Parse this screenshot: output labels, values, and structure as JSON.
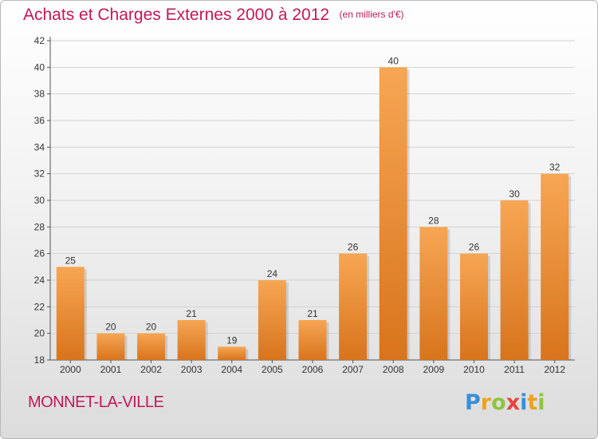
{
  "chart_data": {
    "type": "bar",
    "title": "Achats et Charges Externes 2000 à 2012",
    "subtitle": "(en milliers d'€)",
    "categories": [
      "2000",
      "2001",
      "2002",
      "2003",
      "2004",
      "2005",
      "2006",
      "2007",
      "2008",
      "2009",
      "2010",
      "2011",
      "2012"
    ],
    "values": [
      25,
      20,
      20,
      21,
      19,
      24,
      21,
      26,
      40,
      28,
      26,
      30,
      32
    ],
    "ylim": [
      18,
      42
    ],
    "yticks": [
      18,
      20,
      22,
      24,
      26,
      28,
      30,
      32,
      34,
      36,
      38,
      40,
      42
    ],
    "grid": true,
    "bar_color_top": "#f7a654",
    "bar_color_bottom": "#d8741c"
  },
  "place": "MONNET-LA-VILLE",
  "logo": {
    "text": "Proxiti"
  }
}
